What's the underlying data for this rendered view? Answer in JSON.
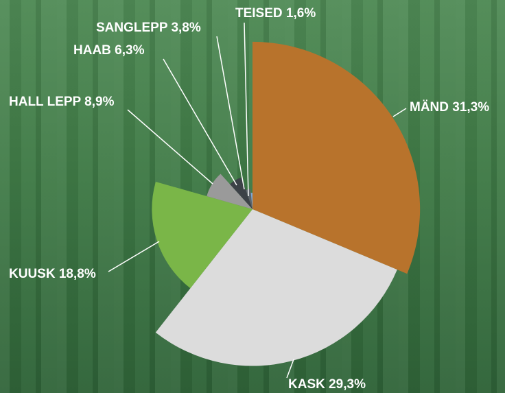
{
  "chart_data": {
    "type": "pie",
    "labels": [
      "MÄND 31,3%",
      "KASK 29,3%",
      "KUUSK 18,8%",
      "HALL LEPP 8,9%",
      "HAAB 6,3%",
      "SANGLEPP 3,8%",
      "TEISED 1,6%"
    ],
    "values": [
      31.3,
      29.3,
      18.8,
      8.9,
      6.3,
      3.8,
      1.6
    ],
    "colors": [
      "#b8732c",
      "#dcdcdc",
      "#7ab648",
      "#9a9a9a",
      "#3c4147",
      "#5d636b",
      "#7aa7d8"
    ]
  }
}
